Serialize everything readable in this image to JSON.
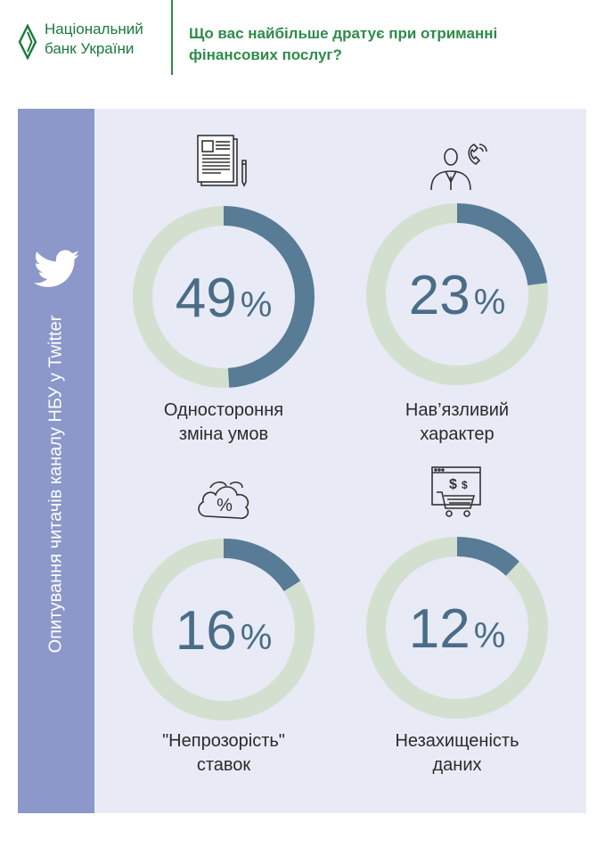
{
  "header": {
    "logo_line1": "Національний",
    "logo_line2": "банк України",
    "title_line1": "Що вас найбільше дратує при отриманні",
    "title_line2": "фінансових послуг?"
  },
  "sidebar": {
    "text": "Опитування читачів каналу НБУ у Twitter",
    "icon": "twitter-bird-icon"
  },
  "colors": {
    "value_arc": "#587b96",
    "remainder_arc": "#d3e0cf",
    "panel_bg": "#e8eaf6",
    "sidebar_bg": "#8b98c9",
    "brand_green": "#2e8b4a"
  },
  "chart_data": {
    "type": "pie",
    "variant": "donut",
    "unit": "%",
    "categories": [
      "Одностороння зміна умов",
      "Нав’язливий характер",
      "\"Непрозорість\" ставок",
      "Незахищеність даних"
    ],
    "values": [
      49,
      23,
      16,
      12
    ],
    "items": [
      {
        "value": 49,
        "value_text": "49",
        "label_line1": "Одностороння",
        "label_line2": "зміна умов",
        "icon": "document-pen-icon"
      },
      {
        "value": 23,
        "value_text": "23",
        "label_line1": "Нав’язливий",
        "label_line2": "характер",
        "icon": "person-phone-icon"
      },
      {
        "value": 16,
        "value_text": "16",
        "label_line1": "\"Непрозорість\"",
        "label_line2": "ставок",
        "icon": "percent-cloud-icon"
      },
      {
        "value": 12,
        "value_text": "12",
        "label_line1": "Незахищеність",
        "label_line2": "даних",
        "icon": "online-shop-cart-icon"
      }
    ],
    "pct_sign": "%"
  }
}
